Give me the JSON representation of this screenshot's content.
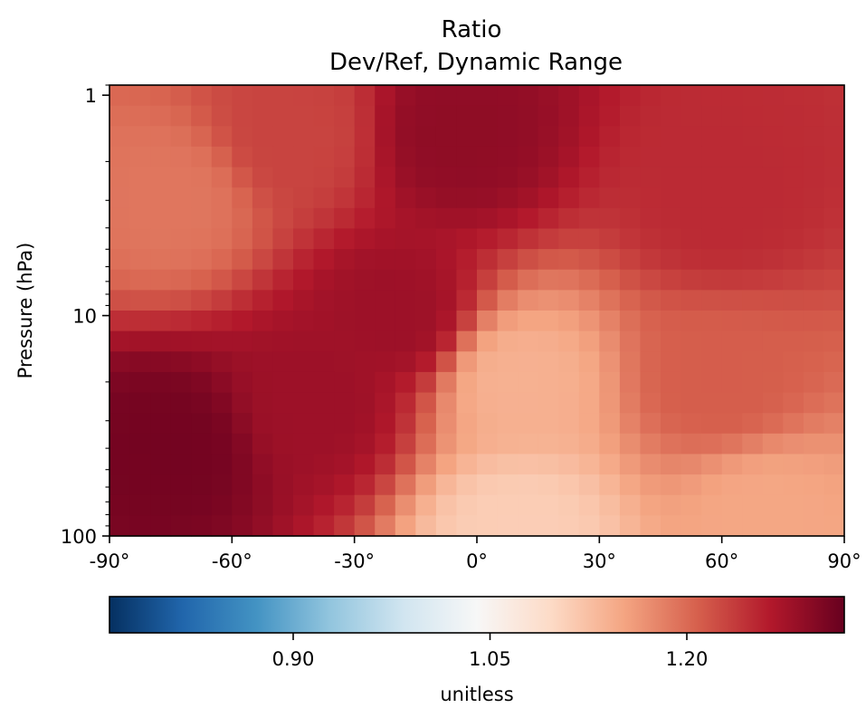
{
  "chart_data": {
    "type": "heatmap",
    "title": "Ratio",
    "subtitle": "Dev/Ref, Dynamic Range",
    "xlabel": "",
    "ylabel": "Pressure (hPa)",
    "xlim": [
      -90,
      90
    ],
    "ylim": [
      100,
      0.9
    ],
    "yscale": "log",
    "xticks": [
      {
        "value": -90,
        "label": "-90°"
      },
      {
        "value": -60,
        "label": "-60°"
      },
      {
        "value": -30,
        "label": "-30°"
      },
      {
        "value": 0,
        "label": "0°"
      },
      {
        "value": 30,
        "label": "30°"
      },
      {
        "value": 60,
        "label": "60°"
      },
      {
        "value": 90,
        "label": "90°"
      }
    ],
    "yticks": [
      {
        "value": 1,
        "label": "1"
      },
      {
        "value": 10,
        "label": "10"
      },
      {
        "value": 100,
        "label": "100"
      }
    ],
    "lat_cells": 36,
    "lev_cells": 22,
    "sample_values": [
      {
        "lat": -75,
        "lev": 3,
        "value": 1.19
      },
      {
        "lat": -45,
        "lev": 1.5,
        "value": 1.23
      },
      {
        "lat": -5,
        "lev": 1.5,
        "value": 1.29
      },
      {
        "lat": 60,
        "lev": 3,
        "value": 1.25
      },
      {
        "lat": -75,
        "lev": 40,
        "value": 1.31
      },
      {
        "lat": -40,
        "lev": 25,
        "value": 1.28
      },
      {
        "lat": -20,
        "lev": 10,
        "value": 1.28
      },
      {
        "lat": 10,
        "lev": 20,
        "value": 1.14
      },
      {
        "lat": 60,
        "lev": 20,
        "value": 1.21
      },
      {
        "lat": 10,
        "lev": 95,
        "value": 1.11
      },
      {
        "lat": 70,
        "lev": 80,
        "value": 1.15
      }
    ],
    "colorbar": {
      "label": "unitless",
      "colormap": "RdBu_r",
      "range": [
        0.76,
        1.32
      ],
      "ticks": [
        {
          "value": 0.9,
          "label": "0.90"
        },
        {
          "value": 1.05,
          "label": "1.05"
        },
        {
          "value": 1.2,
          "label": "1.20"
        }
      ],
      "colors": [
        "#053061",
        "#2166ac",
        "#4393c3",
        "#92c5de",
        "#d1e5f0",
        "#f7f7f7",
        "#fddbc7",
        "#f4a582",
        "#d6604d",
        "#b2182b",
        "#67001f"
      ]
    }
  }
}
